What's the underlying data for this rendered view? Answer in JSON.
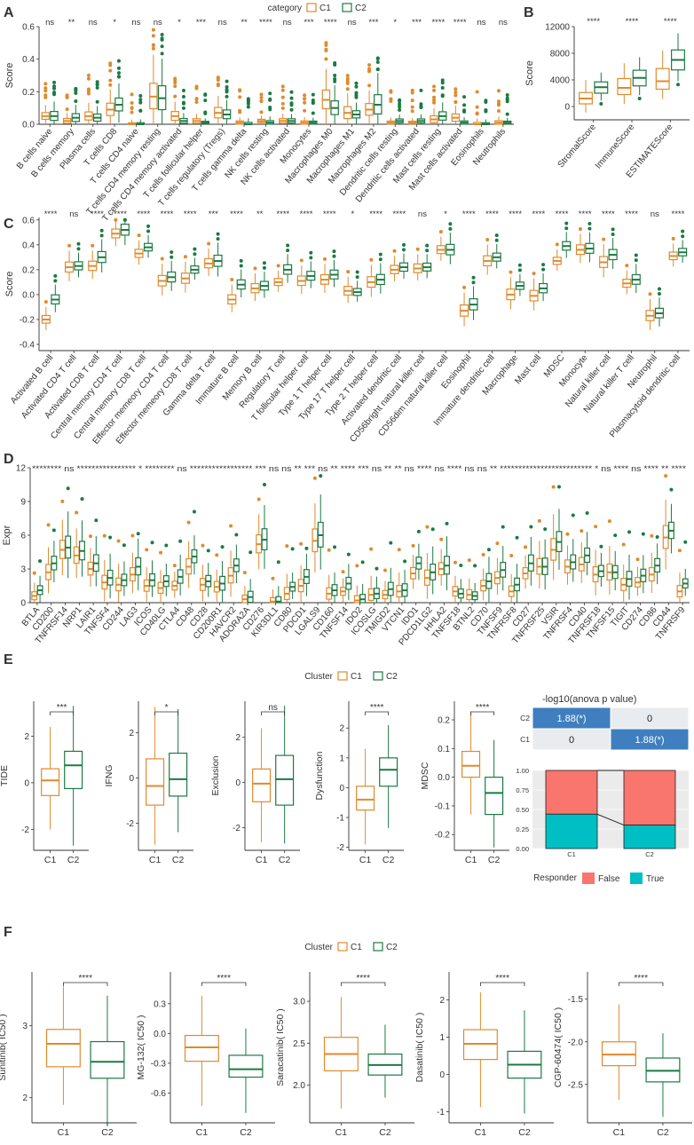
{
  "figure": {
    "title": "Multi-panel immune landscape comparison of cluster C1 vs C2"
  },
  "colors": {
    "C1": "#E08A2C",
    "C2": "#1B7A43",
    "grid": "#E6E6E6",
    "text": "#333333",
    "panel_bg": "#FFFFFF",
    "heat": "#3F7FBF",
    "false_fill": "#F8766D",
    "true_fill": "#00BFC4"
  },
  "chart_data": [
    {
      "id": "A",
      "type": "boxplot",
      "letter": "A",
      "legend_title": "category",
      "legend_items": [
        "C1",
        "C2"
      ],
      "ylabel": "Score",
      "ylim": [
        0,
        0.6
      ],
      "yticks": [
        "0.0",
        "0.2",
        "0.4",
        "0.6"
      ],
      "ytick_values": [
        0,
        0.2,
        0.4,
        0.6
      ],
      "categories": [
        "B cells naive",
        "B cells memory",
        "Plasma cells",
        "T cells CD8",
        "T cells CD4 naive",
        "T cells CD4 memory resting",
        "T cells CD4 memory activated",
        "T cells follicular helper",
        "T cells regulatory (Tregs)",
        "T cells gamma delta",
        "NK cells resting",
        "NK cells activated",
        "Monocytes",
        "Macrophages M0",
        "Macrophages M1",
        "Macrophages M2",
        "Dendritic cells resting",
        "Dendritic cells activated",
        "Mast cells resting",
        "Mast cells activated",
        "Eosinophils",
        "Neutrophils"
      ],
      "signif": [
        "ns",
        "**",
        "ns",
        "*",
        "ns",
        "ns",
        "*",
        "***",
        "ns",
        "**",
        "****",
        "ns",
        "***",
        "****",
        "ns",
        "***",
        "*",
        "***",
        "****",
        "****",
        "ns",
        "ns"
      ],
      "C1_median": [
        0.05,
        0.02,
        0.05,
        0.09,
        0.0,
        0.17,
        0.05,
        0.02,
        0.07,
        0.01,
        0.02,
        0.02,
        0.01,
        0.15,
        0.07,
        0.09,
        0.01,
        0.01,
        0.03,
        0.04,
        0.0,
        0.01
      ],
      "C2_median": [
        0.05,
        0.04,
        0.04,
        0.12,
        0.0,
        0.16,
        0.02,
        0.01,
        0.06,
        0.0,
        0.01,
        0.02,
        0.01,
        0.1,
        0.06,
        0.12,
        0.02,
        0.02,
        0.05,
        0.01,
        0.0,
        0.01
      ]
    },
    {
      "id": "B",
      "type": "boxplot",
      "letter": "B",
      "ylabel": "Score",
      "ylim": [
        -2000,
        12000
      ],
      "yticks": [
        "0",
        "4000",
        "8000",
        "12000"
      ],
      "ytick_values": [
        0,
        4000,
        8000,
        12000
      ],
      "categories": [
        "StromalScore",
        "ImmuneScore",
        "ESTIMATEScore"
      ],
      "signif": [
        "****",
        "****",
        "****"
      ],
      "C1_median": [
        1200,
        2800,
        3800
      ],
      "C2_median": [
        2900,
        4300,
        7000
      ]
    },
    {
      "id": "C",
      "type": "boxplot",
      "letter": "C",
      "ylabel": "Score",
      "ylim": [
        -0.45,
        0.62
      ],
      "yticks": [
        "-0.4",
        "-0.2",
        "0.0",
        "0.2",
        "0.4",
        "0.6"
      ],
      "ytick_values": [
        -0.4,
        -0.2,
        0,
        0.2,
        0.4,
        0.6
      ],
      "categories": [
        "Activated B cell",
        "Activated CD4 T cell",
        "Activated CD8 T cell",
        "Central memory CD4 T cell",
        "Central memory CD8 T cell",
        "Effector memeory CD4 T cell",
        "Effector memeory CD8 T cell",
        "Gamma delta T cell",
        "Immature  B cell",
        "Memory B cell",
        "Regulatory T cell",
        "T follicular helper cell",
        "Type 1 T helper cell",
        "Type 17 T helper cell",
        "Type 2 T helper cell",
        "Activated dendritic cell",
        "CD56bright natural killer cell",
        "CD56dim natural killer cell",
        "Eosinophil",
        "Immature dendritic cell",
        "Macrophage",
        "Mast cell",
        "MDSC",
        "Monocyte",
        "Natural killer cell",
        "Natural killer T cell",
        "Neutrophil",
        "Plasmacytoid dendritic cell"
      ],
      "signif": [
        "****",
        "ns",
        "****",
        "****",
        "****",
        "****",
        "****",
        "***",
        "****",
        "**",
        "****",
        "****",
        "****",
        "*",
        "****",
        "****",
        "ns",
        "*",
        "****",
        "****",
        "****",
        "****",
        "****",
        "****",
        "****",
        "****",
        "ns",
        "****"
      ],
      "C1_median": [
        -0.2,
        0.22,
        0.23,
        0.49,
        0.33,
        0.11,
        0.13,
        0.25,
        -0.04,
        0.05,
        0.1,
        0.11,
        0.12,
        0.03,
        0.1,
        0.2,
        0.21,
        0.36,
        -0.13,
        0.27,
        0.0,
        -0.01,
        0.27,
        0.36,
        0.26,
        0.09,
        -0.17,
        0.31
      ],
      "C2_median": [
        -0.04,
        0.23,
        0.3,
        0.52,
        0.38,
        0.14,
        0.2,
        0.27,
        0.08,
        0.07,
        0.2,
        0.15,
        0.16,
        0.02,
        0.12,
        0.22,
        0.22,
        0.36,
        -0.08,
        0.3,
        0.07,
        0.05,
        0.39,
        0.37,
        0.32,
        0.12,
        -0.15,
        0.34
      ]
    },
    {
      "id": "D",
      "type": "boxplot",
      "letter": "D",
      "ylabel": "Expr",
      "ylim": [
        0,
        12
      ],
      "yticks": [
        "0",
        "3",
        "6",
        "9",
        "12"
      ],
      "ytick_values": [
        0,
        3,
        6,
        9,
        12
      ],
      "categories": [
        "BTLA",
        "CD200",
        "TNFRSF14",
        "NRP1",
        "LAIR1",
        "TNFSF4",
        "CD244",
        "LAG3",
        "ICOS",
        "CD40LG",
        "CTLA4",
        "CD48",
        "CD28",
        "CD200R1",
        "HAVCR2",
        "ADORA2A",
        "CD276",
        "KIR3DL1",
        "CD80",
        "PDCD1",
        "LGALS9",
        "CD160",
        "TNFSF14",
        "IDO2",
        "ICOSLG",
        "TMIGD2",
        "VTCN1",
        "IDO1",
        "PDCD1LG2",
        "HHLA2",
        "TNFSF18",
        "BTNL2",
        "CD70",
        "TNFSF9",
        "TNFRSF8",
        "CD27",
        "TNFRSF25",
        "VSIR",
        "TNFRSF4",
        "CD40",
        "TNFRSF18",
        "TNFSF15",
        "TIGIT",
        "CD274",
        "CD86",
        "CD44",
        "TNFRSF9"
      ],
      "signif_line": "********  ns  ****************  *  ********  ns  *****************  ***  ns  ns  **  ***  ns  **  ****  ***  ns  **  **  ns  ****  ns  ****  ns  ns  **  *************************  *  ns  ****  ns  ****  **  ****",
      "C1_median": [
        0.6,
        2.7,
        4.7,
        4.2,
        3.0,
        1.8,
        1.6,
        2.5,
        1.5,
        1.3,
        1.5,
        3.2,
        1.6,
        1.4,
        2.4,
        0.3,
        5.2,
        0.1,
        0.8,
        1.5,
        5.5,
        0.8,
        1.0,
        0.2,
        0.7,
        0.7,
        1.0,
        2.6,
        2.2,
        3.0,
        1.0,
        0.7,
        1.5,
        2.2,
        1.0,
        2.6,
        3.2,
        4.7,
        3.2,
        3.4,
        2.5,
        2.7,
        1.6,
        1.8,
        2.5,
        5.8,
        1.0
      ],
      "C2_median": [
        1.1,
        3.5,
        4.9,
        4.6,
        3.5,
        2.2,
        2.0,
        3.2,
        2.0,
        1.9,
        2.3,
        4.1,
        1.9,
        1.7,
        3.3,
        0.5,
        5.6,
        0.1,
        1.4,
        2.3,
        6.0,
        1.1,
        1.7,
        0.3,
        0.8,
        1.2,
        1.1,
        3.5,
        2.7,
        3.3,
        0.8,
        0.6,
        1.9,
        2.9,
        1.6,
        3.5,
        3.2,
        5.4,
        3.6,
        4.2,
        2.8,
        2.7,
        2.1,
        2.4,
        3.3,
        6.4,
        1.7
      ]
    },
    {
      "id": "E",
      "type": "boxplot-small-multiples",
      "letter": "E",
      "legend_title": "Cluster",
      "legend_items": [
        "C1",
        "C2"
      ],
      "panels": [
        {
          "ylabel": "TIDE",
          "signif": "***",
          "yticks": [
            "-2",
            "0",
            "2"
          ],
          "ytick_values": [
            -2,
            0,
            2
          ],
          "ylim": [
            -2.9,
            3.5
          ],
          "C1": {
            "q1": -0.55,
            "median": 0.1,
            "q3": 0.6,
            "lo": -2.0,
            "hi": 2.4
          },
          "C2": {
            "q1": -0.25,
            "median": 0.75,
            "q3": 1.35,
            "lo": -2.7,
            "hi": 3.3
          }
        },
        {
          "ylabel": "IFNG",
          "signif": "*",
          "yticks": [
            "-2",
            "0",
            "2"
          ],
          "ytick_values": [
            -2,
            0,
            2
          ],
          "ylim": [
            -3.2,
            3.4
          ],
          "C1": {
            "q1": -1.2,
            "median": -0.35,
            "q3": 0.85,
            "lo": -2.95,
            "hi": 3.15
          },
          "C2": {
            "q1": -0.8,
            "median": -0.05,
            "q3": 1.1,
            "lo": -2.4,
            "hi": 3.05
          }
        },
        {
          "ylabel": "Exclusion",
          "signif": "ns",
          "yticks": [
            "-2",
            "0",
            "2"
          ],
          "ytick_values": [
            -2,
            0,
            2
          ],
          "ylim": [
            -3.0,
            3.6
          ],
          "C1": {
            "q1": -0.85,
            "median": -0.05,
            "q3": 0.6,
            "lo": -2.65,
            "hi": 2.4
          },
          "C2": {
            "q1": -1.0,
            "median": 0.15,
            "q3": 1.2,
            "lo": -2.7,
            "hi": 3.4
          }
        },
        {
          "ylabel": "Dysfunction",
          "signif": "****",
          "yticks": [
            "-2",
            "-1",
            "0",
            "1",
            "2"
          ],
          "ytick_values": [
            -2,
            -1,
            0,
            1,
            2
          ],
          "ylim": [
            -2.1,
            2.9
          ],
          "C1": {
            "q1": -0.75,
            "median": -0.4,
            "q3": 0.05,
            "lo": -1.9,
            "hi": 1.3
          },
          "C2": {
            "q1": 0.05,
            "median": 0.6,
            "q3": 1.0,
            "lo": -1.35,
            "hi": 2.1
          }
        },
        {
          "ylabel": "MDSC",
          "signif": "****",
          "yticks": [
            "-0.2",
            "-0.1",
            "0.0",
            "0.1",
            "0.2"
          ],
          "ytick_values": [
            -0.2,
            -0.1,
            0,
            0.1,
            0.2
          ],
          "ylim": [
            -0.255,
            0.265
          ],
          "C1": {
            "q1": 0.0,
            "median": 0.04,
            "q3": 0.09,
            "lo": -0.13,
            "hi": 0.23
          },
          "C2": {
            "q1": -0.13,
            "median": -0.055,
            "q3": 0.0,
            "lo": -0.245,
            "hi": 0.13
          }
        }
      ],
      "xcategories": [
        "C1",
        "C2"
      ]
    },
    {
      "id": "E_heat",
      "type": "heatmap",
      "title": "-log10(anova p value)",
      "rows": [
        "C2",
        "C1"
      ],
      "cols": [
        "",
        ""
      ],
      "cells": [
        [
          "1.88(*)",
          "0"
        ],
        [
          "0",
          "1.88(*)"
        ]
      ],
      "highlight": [
        [
          true,
          false
        ],
        [
          false,
          true
        ]
      ]
    },
    {
      "id": "E_stack",
      "type": "stacked-bar",
      "categories": [
        "C1",
        "C2"
      ],
      "series": [
        {
          "name": "False",
          "values": [
            0.56,
            0.7
          ]
        },
        {
          "name": "True",
          "values": [
            0.44,
            0.3
          ]
        }
      ],
      "yticks": [
        "0.00",
        "0.25",
        "0.50",
        "0.75",
        "1.00"
      ],
      "ytick_values": [
        0,
        0.25,
        0.5,
        0.75,
        1.0
      ],
      "legend_title": "Responder",
      "legend_items": [
        "False",
        "True"
      ]
    },
    {
      "id": "F",
      "type": "boxplot-small-multiples",
      "letter": "F",
      "legend_title": "Cluster",
      "legend_items": [
        "C1",
        "C2"
      ],
      "panels": [
        {
          "ylabel": "Sunitinib( IC50 )",
          "signif": "****",
          "yticks": [
            "2",
            "3"
          ],
          "ytick_values": [
            2,
            3
          ],
          "ylim": [
            1.65,
            3.75
          ],
          "C1": {
            "q1": 2.43,
            "median": 2.75,
            "q3": 2.95,
            "lo": 1.9,
            "hi": 3.55
          },
          "C2": {
            "q1": 2.27,
            "median": 2.5,
            "q3": 2.78,
            "lo": 1.6,
            "hi": 3.42
          }
        },
        {
          "ylabel": "MG-132( IC50 )",
          "signif": "****",
          "yticks": [
            "-0.6",
            "-0.3",
            "0.0",
            "0.3"
          ],
          "ytick_values": [
            -0.6,
            -0.3,
            0,
            0.3
          ],
          "ylim": [
            -0.9,
            0.62
          ],
          "C1": {
            "q1": -0.28,
            "median": -0.14,
            "q3": -0.02,
            "lo": -0.73,
            "hi": 0.38
          },
          "C2": {
            "q1": -0.44,
            "median": -0.36,
            "q3": -0.22,
            "lo": -0.8,
            "hi": 0.05
          }
        },
        {
          "ylabel": "Saracatinib( IC50 )",
          "signif": "****",
          "yticks": [
            "2.0",
            "2.5",
            "3.0"
          ],
          "ytick_values": [
            2.0,
            2.5,
            3.0
          ],
          "ylim": [
            1.55,
            3.35
          ],
          "C1": {
            "q1": 2.17,
            "median": 2.37,
            "q3": 2.57,
            "lo": 1.72,
            "hi": 3.05
          },
          "C2": {
            "q1": 2.12,
            "median": 2.24,
            "q3": 2.37,
            "lo": 1.85,
            "hi": 2.72
          }
        },
        {
          "ylabel": "Dasatinib( IC50 )",
          "signif": "****",
          "yticks": [
            "-1",
            "0",
            "1",
            "2"
          ],
          "ytick_values": [
            -1,
            0,
            1,
            2
          ],
          "ylim": [
            -1.3,
            2.75
          ],
          "C1": {
            "q1": 0.4,
            "median": 0.82,
            "q3": 1.2,
            "lo": -0.88,
            "hi": 2.2
          },
          "C2": {
            "q1": -0.1,
            "median": 0.26,
            "q3": 0.62,
            "lo": -1.05,
            "hi": 1.72
          }
        },
        {
          "ylabel": "CGP-60474( IC50 )",
          "signif": "****",
          "yticks": [
            "-2.5",
            "-2.0",
            "-1.5"
          ],
          "ytick_values": [
            -2.5,
            -2.0,
            -1.5
          ],
          "ylim": [
            -2.95,
            -1.18
          ],
          "C1": {
            "q1": -2.28,
            "median": -2.15,
            "q3": -2.0,
            "lo": -2.68,
            "hi": -1.56
          },
          "C2": {
            "q1": -2.47,
            "median": -2.34,
            "q3": -2.19,
            "lo": -2.88,
            "hi": -1.9
          }
        }
      ],
      "xcategories": [
        "C1",
        "C2"
      ]
    }
  ]
}
